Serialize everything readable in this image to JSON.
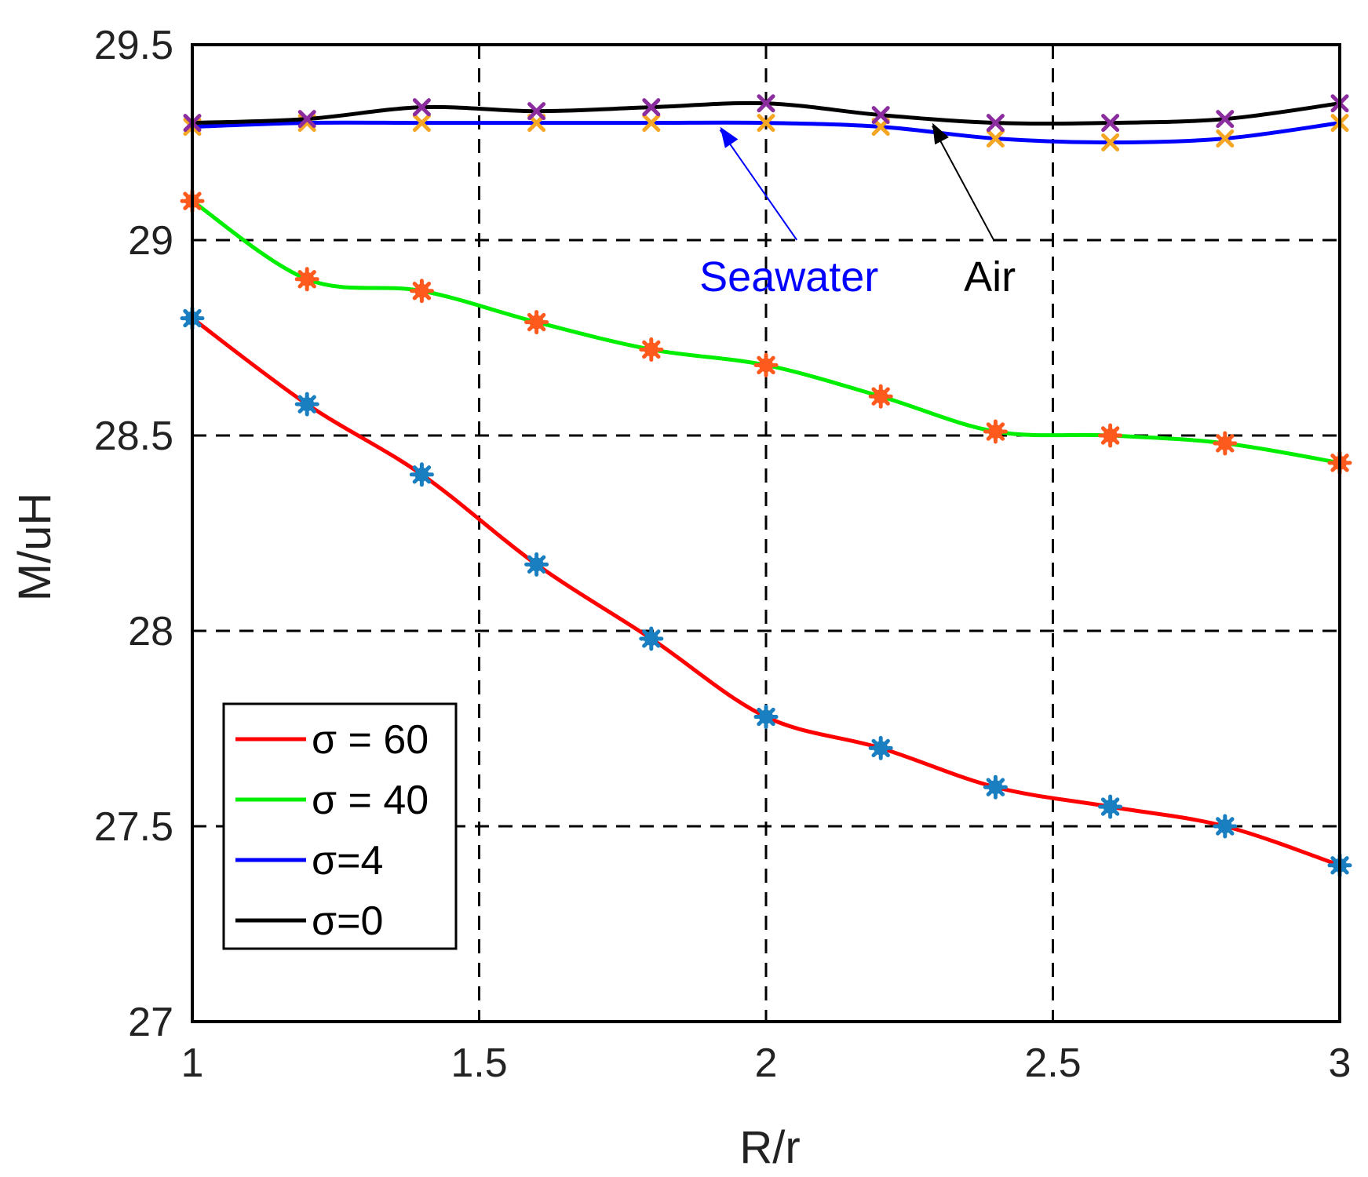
{
  "chart_data": {
    "type": "line",
    "xlabel": "R/r",
    "ylabel": "M/uH",
    "xlim": [
      1,
      3
    ],
    "ylim": [
      27,
      29.5
    ],
    "x_ticks": [
      "1",
      "1.5",
      "2",
      "2.5",
      "3"
    ],
    "y_ticks": [
      "27",
      "27.5",
      "28",
      "28.5",
      "29",
      "29.5"
    ],
    "grid": "dashed",
    "legend_position": "bottom-left",
    "x": [
      1.0,
      1.2,
      1.4,
      1.6,
      1.8,
      2.0,
      2.2,
      2.4,
      2.6,
      2.8,
      3.0
    ],
    "series": [
      {
        "name": "σ = 60",
        "color": "#ff0000",
        "marker": "asterisk",
        "marker_color": "#1a7fc1",
        "values": [
          28.8,
          28.58,
          28.4,
          28.17,
          27.98,
          27.78,
          27.7,
          27.6,
          27.55,
          27.5,
          27.4
        ]
      },
      {
        "name": "σ = 40",
        "color": "#00ee00",
        "marker": "asterisk",
        "marker_color": "#ff5a1e",
        "values": [
          29.1,
          28.9,
          28.87,
          28.79,
          28.72,
          28.68,
          28.6,
          28.51,
          28.5,
          28.48,
          28.43
        ]
      },
      {
        "name": "σ=4",
        "color": "#0000ff",
        "marker": "x",
        "marker_color": "#f5a623",
        "values": [
          29.29,
          29.3,
          29.3,
          29.3,
          29.3,
          29.3,
          29.29,
          29.26,
          29.25,
          29.26,
          29.3
        ]
      },
      {
        "name": "σ=0",
        "color": "#000000",
        "marker": "x",
        "marker_color": "#8b2d9e",
        "values": [
          29.3,
          29.31,
          29.34,
          29.33,
          29.34,
          29.35,
          29.32,
          29.3,
          29.3,
          29.31,
          29.35
        ]
      }
    ],
    "annotations": [
      {
        "text": "Seawater",
        "color": "#0000ff",
        "x_text": 2.04,
        "y_text": 28.91,
        "x_tip": 1.92,
        "y_tip": 29.29
      },
      {
        "text": "Air",
        "color": "#000000",
        "x_text": 2.39,
        "y_text": 28.91,
        "x_tip": 2.29,
        "y_tip": 29.3
      }
    ]
  }
}
